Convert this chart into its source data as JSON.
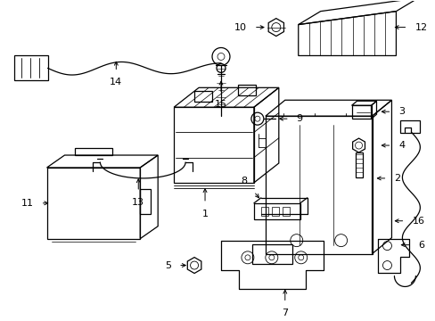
{
  "bg": "#ffffff",
  "lc": "#000000",
  "lw": 0.9,
  "fig_w": 4.89,
  "fig_h": 3.6,
  "dpi": 100
}
